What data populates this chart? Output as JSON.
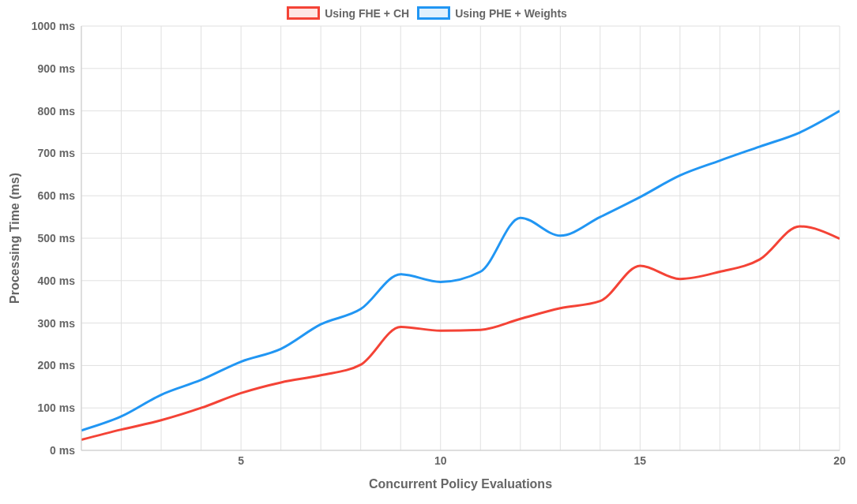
{
  "chart_data": {
    "type": "line",
    "xlabel": "Concurrent Policy Evaluations",
    "ylabel": "Processing Time (ms)",
    "x": [
      1,
      2,
      3,
      4,
      5,
      6,
      7,
      8,
      9,
      10,
      11,
      12,
      13,
      14,
      15,
      16,
      17,
      18,
      19,
      20
    ],
    "series": [
      {
        "name": "Using FHE + CH",
        "color": "#f44336",
        "values": [
          25,
          49,
          71,
          100,
          135,
          160,
          177,
          202,
          291,
          282,
          284,
          310,
          335,
          352,
          435,
          404,
          421,
          450,
          528,
          499
        ]
      },
      {
        "name": "Using PHE + Weights",
        "color": "#2196f3",
        "values": [
          47,
          80,
          131,
          166,
          209,
          239,
          297,
          333,
          415,
          397,
          421,
          548,
          506,
          550,
          597,
          648,
          683,
          716,
          749,
          800
        ]
      }
    ],
    "xlim": [
      1,
      20
    ],
    "xticks": [
      {
        "value": 1,
        "label": null
      },
      {
        "value": 2,
        "label": null
      },
      {
        "value": 3,
        "label": null
      },
      {
        "value": 4,
        "label": null
      },
      5,
      {
        "value": 6,
        "label": null
      },
      {
        "value": 7,
        "label": null
      },
      {
        "value": 8,
        "label": null
      },
      {
        "value": 9,
        "label": null
      },
      10,
      {
        "value": 11,
        "label": null
      },
      {
        "value": 12,
        "label": null
      },
      {
        "value": 13,
        "label": null
      },
      {
        "value": 14,
        "label": null
      },
      15,
      {
        "value": 16,
        "label": null
      },
      {
        "value": 17,
        "label": null
      },
      {
        "value": 18,
        "label": null
      },
      {
        "value": 19,
        "label": null
      },
      20
    ],
    "ylim": [
      0,
      1000
    ],
    "yticks": [
      {
        "value": 0,
        "label": "0 ms"
      },
      {
        "value": 100,
        "label": "100 ms"
      },
      {
        "value": 200,
        "label": "200 ms"
      },
      {
        "value": 300,
        "label": "300 ms"
      },
      {
        "value": 400,
        "label": "400 ms"
      },
      {
        "value": 500,
        "label": "500 ms"
      },
      {
        "value": 600,
        "label": "600 ms"
      },
      {
        "value": 700,
        "label": "700 ms"
      },
      {
        "value": 800,
        "label": "800 ms"
      },
      {
        "value": 900,
        "label": "900 ms"
      },
      {
        "value": 1000,
        "label": "1000 ms"
      }
    ],
    "grid": true,
    "legend": "top",
    "marker": "none",
    "line_style": "solid"
  }
}
